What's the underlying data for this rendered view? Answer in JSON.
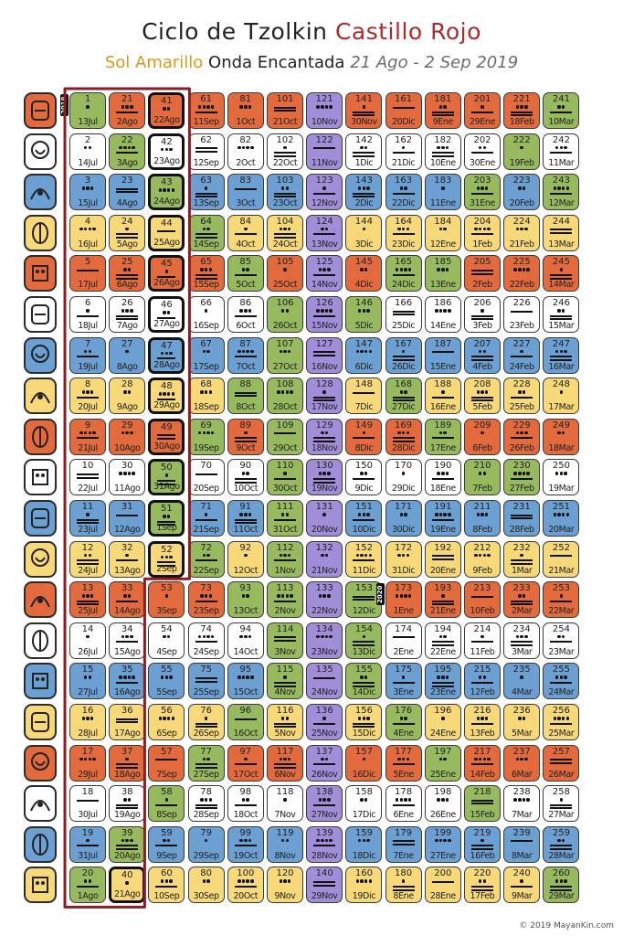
{
  "title": {
    "line1_prefix": "Ciclo de Tzolkin",
    "line1_highlight": "Castillo Rojo",
    "line2_yellow": "Sol Amarillo",
    "line2_mid": "Onda Encantada",
    "line2_range": "21 Ago - 2 Sep 2019"
  },
  "credit": "© 2019 MayanKin.com",
  "year_labels": {
    "y2019": "2019",
    "y2020": "2020"
  },
  "colors": {
    "red": "#e26a3c",
    "white": "#ffffff",
    "blue": "#6c9fd2",
    "yellow": "#f7d97a",
    "green": "#97ba5f",
    "purple": "#a08fd8",
    "outline": "#8b1e22"
  },
  "glyphs": [
    "dragon-glyph-icon",
    "wind-glyph-icon",
    "night-glyph-icon",
    "seed-glyph-icon",
    "serpent-glyph-icon",
    "worldbridger-glyph-icon",
    "hand-glyph-icon",
    "star-glyph-icon",
    "moon-glyph-icon",
    "dog-glyph-icon",
    "monkey-glyph-icon",
    "human-glyph-icon",
    "skywalker-glyph-icon",
    "wizard-glyph-icon",
    "eagle-glyph-icon",
    "warrior-glyph-icon",
    "earth-glyph-icon",
    "mirror-glyph-icon",
    "storm-glyph-icon",
    "sun-glyph-icon"
  ],
  "columns": [
    {
      "start": 1,
      "dates": [
        "13Jul",
        "14Jul",
        "15Jul",
        "16Jul",
        "17Jul",
        "18Jul",
        "19Jul",
        "20Jul",
        "21Jul",
        "22Jul",
        "23Jul",
        "24Jul",
        "25Jul",
        "26Jul",
        "27Jul",
        "28Jul",
        "29Jul",
        "30Jul",
        "31Jul",
        "1Ago"
      ]
    },
    {
      "start": 21,
      "dates": [
        "2Ago",
        "3Ago",
        "4Ago",
        "5Ago",
        "6Ago",
        "7Ago",
        "8Ago",
        "9Ago",
        "10Ago",
        "11Ago",
        "12Ago",
        "13Ago",
        "14Ago",
        "15Ago",
        "16Ago",
        "17Ago",
        "18Ago",
        "19Ago",
        "20Ago",
        "21Ago"
      ]
    },
    {
      "start": 41,
      "dates": [
        "22Ago",
        "23Ago",
        "24Ago",
        "25Ago",
        "26Ago",
        "27Ago",
        "28Ago",
        "29Ago",
        "30Ago",
        "31Ago",
        "1Sep",
        "2Sep",
        "3Sep",
        "4Sep",
        "5Sep",
        "6Sep",
        "7Sep",
        "8Sep",
        "9Sep",
        "10Sep"
      ]
    },
    {
      "start": 61,
      "dates": [
        "11Sep",
        "12Sep",
        "13Sep",
        "14Sep",
        "15Sep",
        "16Sep",
        "17Sep",
        "18Sep",
        "19Sep",
        "20Sep",
        "21Sep",
        "22Sep",
        "23Sep",
        "24Sep",
        "25Sep",
        "26Sep",
        "27Sep",
        "28Sep",
        "29Sep",
        "30Sep"
      ]
    },
    {
      "start": 81,
      "dates": [
        "1Oct",
        "2Oct",
        "3Oct",
        "4Oct",
        "5Oct",
        "6Oct",
        "7Oct",
        "8Oct",
        "9Oct",
        "10Oct",
        "11Oct",
        "12Oct",
        "13Oct",
        "14Oct",
        "15Oct",
        "16Oct",
        "17Oct",
        "18Oct",
        "19Oct",
        "20Oct"
      ]
    },
    {
      "start": 101,
      "dates": [
        "21Oct",
        "22Oct",
        "23Oct",
        "24Oct",
        "25Oct",
        "26Oct",
        "27Oct",
        "28Oct",
        "29Oct",
        "30Oct",
        "31Oct",
        "1Nov",
        "2Nov",
        "3Nov",
        "4Nov",
        "5Nov",
        "6Nov",
        "7Nov",
        "8Nov",
        "9Nov"
      ]
    },
    {
      "start": 121,
      "dates": [
        "10Nov",
        "11Nov",
        "12Nov",
        "13Nov",
        "14Nov",
        "15Nov",
        "16Nov",
        "17Nov",
        "18Nov",
        "19Nov",
        "20Nov",
        "21Nov",
        "22Nov",
        "23Nov",
        "24Nov",
        "25Nov",
        "26Nov",
        "27Nov",
        "28Nov",
        "29Nov"
      ]
    },
    {
      "start": 141,
      "dates": [
        "30Nov",
        "1Dic",
        "2Dic",
        "3Dic",
        "4Dic",
        "5Dic",
        "6Dic",
        "7Dic",
        "8Dic",
        "9Dic",
        "10Dic",
        "11Dic",
        "12Dic",
        "13Dic",
        "14Dic",
        "15Dic",
        "16Dic",
        "17Dic",
        "18Dic",
        "19Dic"
      ]
    },
    {
      "start": 161,
      "dates": [
        "20Dic",
        "21Dic",
        "22Dic",
        "23Dic",
        "24Dic",
        "25Dic",
        "26Dic",
        "27Dic",
        "28Dic",
        "29Dic",
        "30Dic",
        "31Dic",
        "1Ene",
        "2Ene",
        "3Ene",
        "4Ene",
        "5Ene",
        "6Ene",
        "7Ene",
        "8Ene"
      ]
    },
    {
      "start": 181,
      "dates": [
        "9Ene",
        "10Ene",
        "11Ene",
        "12Ene",
        "13Ene",
        "14Ene",
        "15Ene",
        "16Ene",
        "17Ene",
        "18Ene",
        "19Ene",
        "20Ene",
        "21Ene",
        "22Ene",
        "23Ene",
        "24Ene",
        "25Ene",
        "26Ene",
        "27Ene",
        "28Ene"
      ]
    },
    {
      "start": 201,
      "dates": [
        "29Ene",
        "30Ene",
        "31Ene",
        "1Feb",
        "2Feb",
        "3Feb",
        "4Feb",
        "5Feb",
        "6Feb",
        "7Feb",
        "8Feb",
        "9Feb",
        "10Feb",
        "11Feb",
        "12Feb",
        "13Feb",
        "14Feb",
        "15Feb",
        "16Feb",
        "17Feb"
      ]
    },
    {
      "start": 221,
      "dates": [
        "18Feb",
        "19Feb",
        "20Feb",
        "21Feb",
        "22Feb",
        "23Feb",
        "24Feb",
        "25Feb",
        "26Feb",
        "27Feb",
        "28Feb",
        "1Mar",
        "2Mar",
        "3Mar",
        "4Mar",
        "5Mar",
        "6Mar",
        "7Mar",
        "8Mar",
        "9Mar"
      ]
    },
    {
      "start": 241,
      "dates": [
        "10Mar",
        "11Mar",
        "12Mar",
        "13Mar",
        "14Mar",
        "15Mar",
        "16Mar",
        "17Mar",
        "18Mar",
        "19Mar",
        "20Mar",
        "21Mar",
        "22Mar",
        "23Mar",
        "24Mar",
        "25Mar",
        "26Mar",
        "27Mar",
        "28Mar",
        "29Mar"
      ]
    }
  ]
}
